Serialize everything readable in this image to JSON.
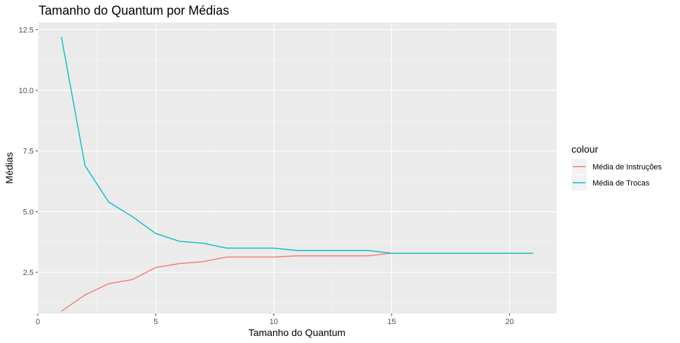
{
  "chart_data": {
    "type": "line",
    "title": "Tamanho do Quantum por Médias",
    "xlabel": "Tamanho do Quantum",
    "ylabel": "Médias",
    "xlim": [
      0,
      22
    ],
    "ylim": [
      0.8,
      12.8
    ],
    "x_ticks": [
      0,
      5,
      10,
      15,
      20
    ],
    "x_tick_labels": [
      "0",
      "5",
      "10",
      "15",
      "20"
    ],
    "y_ticks": [
      2.5,
      5.0,
      7.5,
      10.0,
      12.5
    ],
    "y_tick_labels": [
      "2.5",
      "5.0",
      "7.5",
      "10.0",
      "12.5"
    ],
    "grid": true,
    "legend": {
      "title": "colour",
      "placement": "right"
    },
    "x": [
      1,
      2,
      3,
      4,
      5,
      6,
      7,
      8,
      9,
      10,
      11,
      12,
      13,
      14,
      15,
      16,
      17,
      18,
      19,
      20,
      21
    ],
    "series": [
      {
        "name": "Média de Instruções",
        "color": "#f8766d",
        "values": [
          0.9,
          1.57,
          2.03,
          2.2,
          2.7,
          2.86,
          2.94,
          3.13,
          3.13,
          3.13,
          3.18,
          3.18,
          3.18,
          3.18,
          3.29,
          3.29,
          3.29,
          3.29,
          3.29,
          3.29,
          3.29
        ]
      },
      {
        "name": "Média de Trocas",
        "color": "#00bfc4",
        "values": [
          12.2,
          6.9,
          5.4,
          4.8,
          4.1,
          3.78,
          3.7,
          3.5,
          3.5,
          3.5,
          3.4,
          3.4,
          3.4,
          3.4,
          3.29,
          3.29,
          3.29,
          3.29,
          3.29,
          3.29,
          3.29
        ]
      }
    ]
  }
}
